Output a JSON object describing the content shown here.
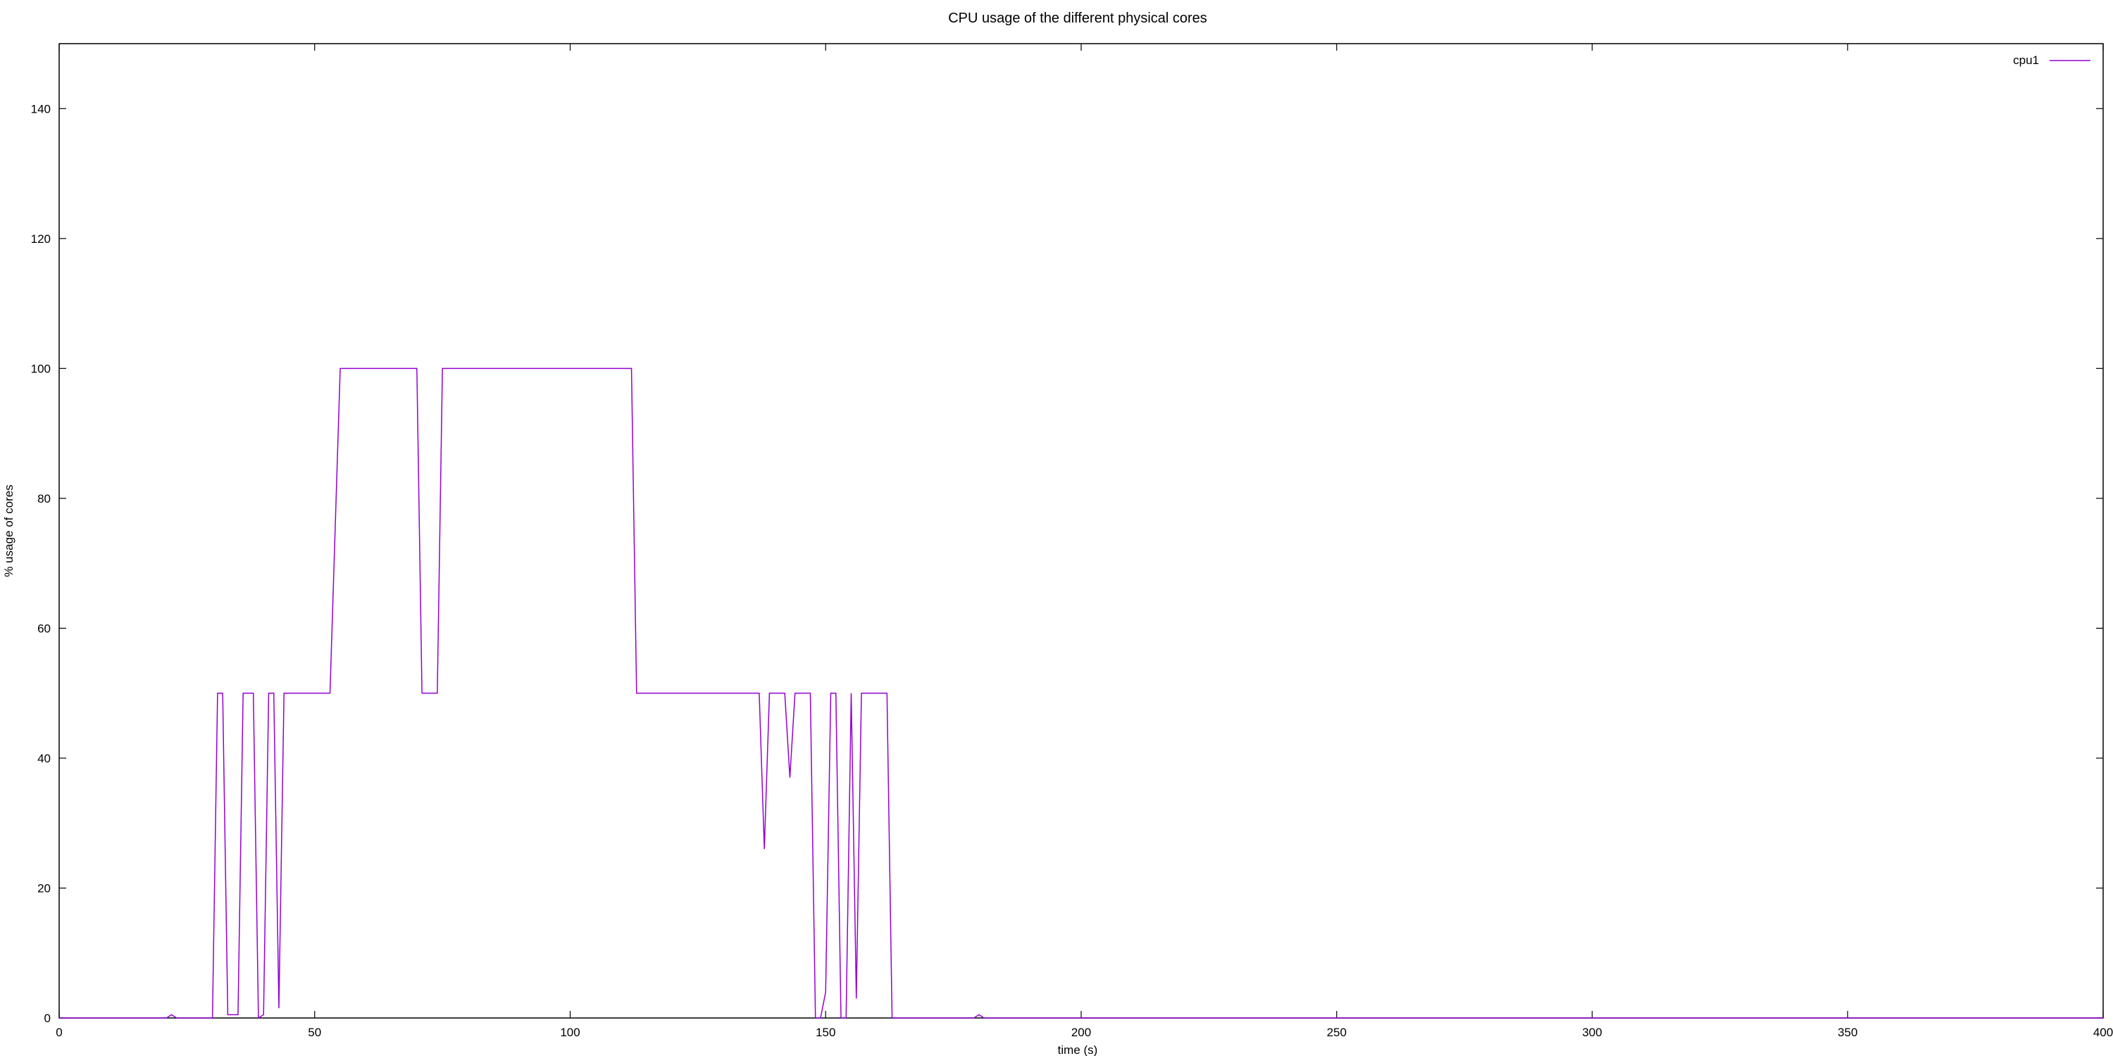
{
  "chart_data": {
    "type": "line",
    "title": "CPU usage of the different physical cores",
    "xlabel": "time (s)",
    "ylabel": "% usage of cores",
    "xlim": [
      0,
      400
    ],
    "ylim": [
      0,
      150
    ],
    "xticks": [
      0,
      50,
      100,
      150,
      200,
      250,
      300,
      350,
      400
    ],
    "yticks": [
      0,
      20,
      40,
      60,
      80,
      100,
      120,
      140
    ],
    "grid": false,
    "legend_position": "top-right",
    "series": [
      {
        "name": "cpu1",
        "color": "#9400d3",
        "x": [
          0,
          21,
          22,
          23,
          30,
          31,
          32,
          33,
          34,
          35,
          36,
          37,
          38,
          39,
          40,
          41,
          42,
          43,
          44,
          45,
          50,
          53,
          55,
          60,
          70,
          71,
          73,
          74,
          75,
          80,
          100,
          112,
          113,
          115,
          120,
          130,
          137,
          138,
          139,
          140,
          141,
          142,
          143,
          144,
          145,
          146,
          147,
          148,
          149,
          150,
          151,
          152,
          153,
          154,
          155,
          156,
          157,
          158,
          159,
          160,
          161,
          162,
          163,
          164,
          165,
          170,
          179,
          180,
          181,
          185,
          200,
          400
        ],
        "y": [
          0,
          0,
          0.5,
          0,
          0,
          50,
          50,
          0.5,
          0.5,
          0.5,
          50,
          50,
          50,
          0,
          0.5,
          50,
          50,
          1.5,
          50,
          50,
          50,
          50,
          100,
          100,
          100,
          50,
          50,
          50,
          100,
          100,
          100,
          100,
          50,
          50,
          50,
          50,
          50,
          26,
          50,
          50,
          50,
          50,
          37,
          50,
          50,
          50,
          50,
          0,
          0,
          4,
          50,
          50,
          0,
          0,
          50,
          3,
          50,
          50,
          50,
          50,
          50,
          50,
          0,
          0,
          0,
          0,
          0,
          0.5,
          0,
          0,
          0,
          0
        ]
      }
    ]
  }
}
